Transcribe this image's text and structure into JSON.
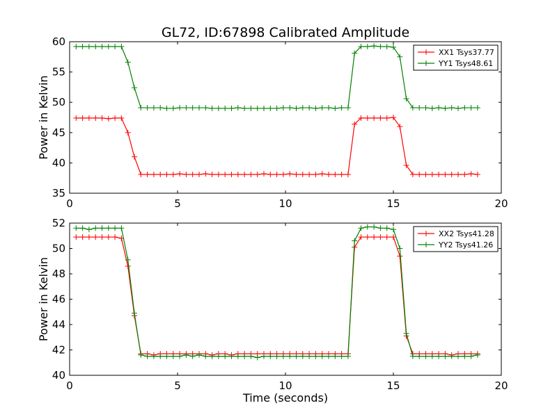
{
  "title": "GL72, ID:67898 Calibrated Amplitude",
  "colors": {
    "red": "#ff0000",
    "green": "#008000"
  },
  "chart_data": [
    {
      "type": "line",
      "title": "GL72, ID:67898 Calibrated Amplitude",
      "xlabel": "",
      "ylabel": "Power in Kelvin",
      "xlim": [
        0,
        20
      ],
      "ylim": [
        35,
        60
      ],
      "xticks": [
        "0",
        "5",
        "10",
        "15",
        "20"
      ],
      "yticks": [
        "35",
        "40",
        "45",
        "50",
        "55",
        "60"
      ],
      "legend_position": "top-right",
      "grid": false,
      "x": [
        0.3,
        0.6,
        0.9,
        1.2,
        1.5,
        1.8,
        2.1,
        2.4,
        2.7,
        3.0,
        3.3,
        3.6,
        3.9,
        4.2,
        4.5,
        4.8,
        5.1,
        5.4,
        5.7,
        6.0,
        6.3,
        6.6,
        6.9,
        7.2,
        7.5,
        7.8,
        8.1,
        8.4,
        8.7,
        9.0,
        9.3,
        9.6,
        9.9,
        10.2,
        10.5,
        10.8,
        11.1,
        11.4,
        11.7,
        12.0,
        12.3,
        12.6,
        12.9,
        13.2,
        13.5,
        13.8,
        14.1,
        14.4,
        14.7,
        15.0,
        15.3,
        15.6,
        15.9,
        16.2,
        16.5,
        16.8,
        17.1,
        17.4,
        17.7,
        18.0,
        18.3,
        18.6,
        18.9
      ],
      "series": [
        {
          "name": "XX1 Tsys37.77",
          "color": "#ff0000",
          "values": [
            47.4,
            47.4,
            47.4,
            47.4,
            47.4,
            47.3,
            47.4,
            47.4,
            45.0,
            41.0,
            38.1,
            38.1,
            38.1,
            38.1,
            38.1,
            38.1,
            38.2,
            38.1,
            38.1,
            38.1,
            38.2,
            38.1,
            38.1,
            38.1,
            38.1,
            38.1,
            38.1,
            38.1,
            38.1,
            38.2,
            38.1,
            38.1,
            38.1,
            38.2,
            38.1,
            38.1,
            38.1,
            38.1,
            38.2,
            38.1,
            38.1,
            38.1,
            38.1,
            46.4,
            47.4,
            47.4,
            47.4,
            47.4,
            47.4,
            47.5,
            46.0,
            39.6,
            38.1,
            38.1,
            38.1,
            38.1,
            38.1,
            38.1,
            38.1,
            38.1,
            38.1,
            38.2,
            38.1
          ]
        },
        {
          "name": "YY1 Tsys48.61",
          "color": "#008000",
          "values": [
            59.2,
            59.2,
            59.2,
            59.2,
            59.2,
            59.2,
            59.2,
            59.2,
            56.6,
            52.4,
            49.1,
            49.1,
            49.1,
            49.1,
            49.0,
            49.0,
            49.1,
            49.1,
            49.1,
            49.1,
            49.1,
            49.0,
            49.0,
            49.0,
            49.0,
            49.1,
            49.0,
            49.0,
            49.0,
            49.0,
            49.0,
            49.0,
            49.1,
            49.1,
            49.0,
            49.1,
            49.1,
            49.0,
            49.1,
            49.1,
            49.0,
            49.1,
            49.1,
            58.1,
            59.2,
            59.2,
            59.3,
            59.2,
            59.2,
            59.1,
            57.5,
            50.6,
            49.1,
            49.1,
            49.1,
            49.0,
            49.1,
            49.0,
            49.1,
            49.0,
            49.1,
            49.1,
            49.1
          ]
        }
      ]
    },
    {
      "type": "line",
      "title": "",
      "xlabel": "Time (seconds)",
      "ylabel": "Power in Kelvin",
      "xlim": [
        0,
        20
      ],
      "ylim": [
        40,
        52
      ],
      "xticks": [
        "0",
        "5",
        "10",
        "15",
        "20"
      ],
      "yticks": [
        "40",
        "42",
        "44",
        "46",
        "48",
        "50",
        "52"
      ],
      "legend_position": "top-right",
      "grid": false,
      "x": [
        0.3,
        0.6,
        0.9,
        1.2,
        1.5,
        1.8,
        2.1,
        2.4,
        2.7,
        3.0,
        3.3,
        3.6,
        3.9,
        4.2,
        4.5,
        4.8,
        5.1,
        5.4,
        5.7,
        6.0,
        6.3,
        6.6,
        6.9,
        7.2,
        7.5,
        7.8,
        8.1,
        8.4,
        8.7,
        9.0,
        9.3,
        9.6,
        9.9,
        10.2,
        10.5,
        10.8,
        11.1,
        11.4,
        11.7,
        12.0,
        12.3,
        12.6,
        12.9,
        13.2,
        13.5,
        13.8,
        14.1,
        14.4,
        14.7,
        15.0,
        15.3,
        15.6,
        15.9,
        16.2,
        16.5,
        16.8,
        17.1,
        17.4,
        17.7,
        18.0,
        18.3,
        18.6,
        18.9
      ],
      "series": [
        {
          "name": "XX2 Tsys41.28",
          "color": "#ff0000",
          "values": [
            50.9,
            50.9,
            50.9,
            50.9,
            50.9,
            50.9,
            50.9,
            50.8,
            48.6,
            44.7,
            41.7,
            41.7,
            41.6,
            41.7,
            41.7,
            41.7,
            41.7,
            41.7,
            41.7,
            41.7,
            41.7,
            41.6,
            41.7,
            41.7,
            41.6,
            41.7,
            41.7,
            41.7,
            41.7,
            41.7,
            41.7,
            41.7,
            41.7,
            41.7,
            41.7,
            41.7,
            41.7,
            41.7,
            41.7,
            41.7,
            41.7,
            41.7,
            41.7,
            50.1,
            50.9,
            50.9,
            50.9,
            50.9,
            50.9,
            50.9,
            49.4,
            43.1,
            41.7,
            41.7,
            41.7,
            41.7,
            41.7,
            41.7,
            41.6,
            41.7,
            41.7,
            41.7,
            41.7
          ]
        },
        {
          "name": "YY2 Tsys41.26",
          "color": "#008000",
          "values": [
            51.6,
            51.6,
            51.5,
            51.6,
            51.6,
            51.6,
            51.6,
            51.6,
            49.1,
            44.9,
            41.6,
            41.5,
            41.5,
            41.5,
            41.5,
            41.5,
            41.5,
            41.6,
            41.5,
            41.6,
            41.5,
            41.5,
            41.5,
            41.5,
            41.5,
            41.5,
            41.5,
            41.5,
            41.4,
            41.5,
            41.5,
            41.5,
            41.5,
            41.5,
            41.5,
            41.5,
            41.5,
            41.5,
            41.5,
            41.5,
            41.5,
            41.5,
            41.5,
            50.6,
            51.6,
            51.7,
            51.7,
            51.6,
            51.6,
            51.5,
            50.0,
            43.3,
            41.5,
            41.5,
            41.5,
            41.5,
            41.5,
            41.5,
            41.5,
            41.5,
            41.5,
            41.5,
            41.6
          ]
        }
      ]
    }
  ]
}
